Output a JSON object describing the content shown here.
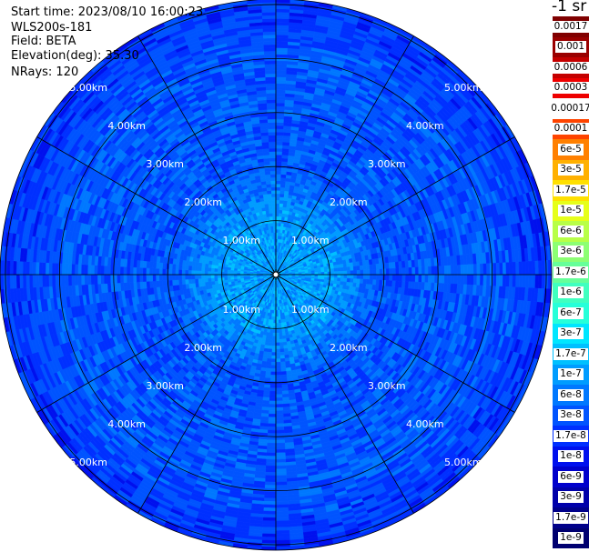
{
  "info": {
    "start_time": "Start time: 2023/08/10 16:00:23",
    "instrument": "WLS200s-181",
    "field": "Field: BETA",
    "elevation": "Elevation(deg): 35.30",
    "nrays": "NRays: 120"
  },
  "colorbar": {
    "unit_label": "-1 sr",
    "labels": [
      "0.0017",
      "0.001",
      "0.0006",
      "0.0003",
      "0.00017",
      "0.0001",
      "6e-5",
      "3e-5",
      "1.7e-5",
      "1e-5",
      "6e-6",
      "3e-6",
      "1.7e-6",
      "1e-6",
      "6e-7",
      "3e-7",
      "1.7e-7",
      "1e-7",
      "6e-8",
      "3e-8",
      "1.7e-8",
      "1e-8",
      "6e-9",
      "3e-9",
      "1.7e-9",
      "1e-9"
    ],
    "colors": [
      "#800000",
      "#9a0000",
      "#c40000",
      "#ee0000",
      "#ffffff",
      "#ff4400",
      "#ff8000",
      "#ffb000",
      "#ffe000",
      "#e6ff1a",
      "#b8ff47",
      "#8cff73",
      "#66ff99",
      "#40ffbf",
      "#26ffd9",
      "#00e6ff",
      "#00c0ff",
      "#009cff",
      "#0078ff",
      "#0054ff",
      "#0030ff",
      "#0010ee",
      "#0000cc",
      "#0000aa",
      "#00008a",
      "#000070"
    ]
  },
  "chart_data": {
    "type": "heatmap",
    "projection": "polar-ppi",
    "title": "",
    "field": "BETA",
    "elevation_deg": 35.3,
    "nrays": 120,
    "range_rings_km": [
      1,
      2,
      3,
      4,
      5
    ],
    "max_range_km": 5.1,
    "ring_labels": [
      "1.00km",
      "2.00km",
      "3.00km",
      "4.00km",
      "5.00km"
    ],
    "spokes_deg": [
      0,
      30,
      60,
      90,
      120,
      150,
      180,
      210,
      240,
      270,
      300,
      330
    ],
    "range_profile": [
      {
        "range_km": 0.5,
        "value": "1e-7"
      },
      {
        "range_km": 1.0,
        "value": "1e-7"
      },
      {
        "range_km": 1.5,
        "value": "6e-8"
      },
      {
        "range_km": 2.0,
        "value": "3e-8"
      },
      {
        "range_km": 3.0,
        "value": "3e-8"
      },
      {
        "range_km": 4.0,
        "value": "3e-8"
      },
      {
        "range_km": 5.0,
        "value": "1.7e-8"
      }
    ]
  }
}
